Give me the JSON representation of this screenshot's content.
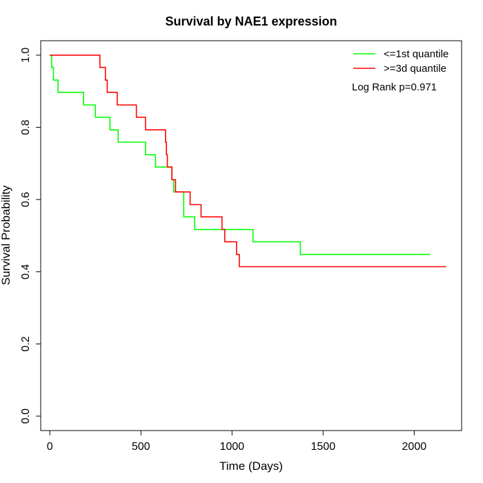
{
  "chart_data": {
    "type": "line",
    "title": "Survival by NAE1 expression",
    "xlabel": "Time (Days)",
    "ylabel": "Survival Probability",
    "xlim": [
      -50,
      2260
    ],
    "ylim": [
      -0.04,
      1.04
    ],
    "x_ticks": [
      0,
      500,
      1000,
      1500,
      2000
    ],
    "y_ticks": [
      0.0,
      0.2,
      0.4,
      0.6,
      0.8,
      1.0
    ],
    "x_tick_labels": [
      "0",
      "500",
      "1000",
      "1500",
      "2000"
    ],
    "y_tick_labels": [
      "0.0",
      "0.2",
      "0.4",
      "0.6",
      "0.8",
      "1.0"
    ],
    "grid": false,
    "legend_position": "top-right",
    "annotation": "Log Rank p=0.971",
    "series": [
      {
        "name": "<=1st quantile",
        "color": "#00ff00",
        "step_x": [
          0,
          10,
          20,
          45,
          185,
          250,
          330,
          375,
          525,
          580,
          670,
          680,
          735,
          795,
          1115,
          1375,
          2085
        ],
        "step_y": [
          1.0,
          0.966,
          0.931,
          0.897,
          0.862,
          0.828,
          0.793,
          0.759,
          0.724,
          0.69,
          0.655,
          0.621,
          0.552,
          0.517,
          0.483,
          0.448,
          0.448
        ]
      },
      {
        "name": ">=3d quantile",
        "color": "#ff0000",
        "step_x": [
          0,
          275,
          305,
          315,
          330,
          370,
          475,
          525,
          635,
          640,
          645,
          655,
          670,
          690,
          770,
          830,
          945,
          960,
          1025,
          1040,
          2175
        ],
        "step_y": [
          1.0,
          0.966,
          0.931,
          0.897,
          0.897,
          0.862,
          0.828,
          0.793,
          0.759,
          0.724,
          0.69,
          0.69,
          0.655,
          0.621,
          0.586,
          0.552,
          0.517,
          0.483,
          0.448,
          0.414,
          0.414
        ]
      }
    ]
  }
}
